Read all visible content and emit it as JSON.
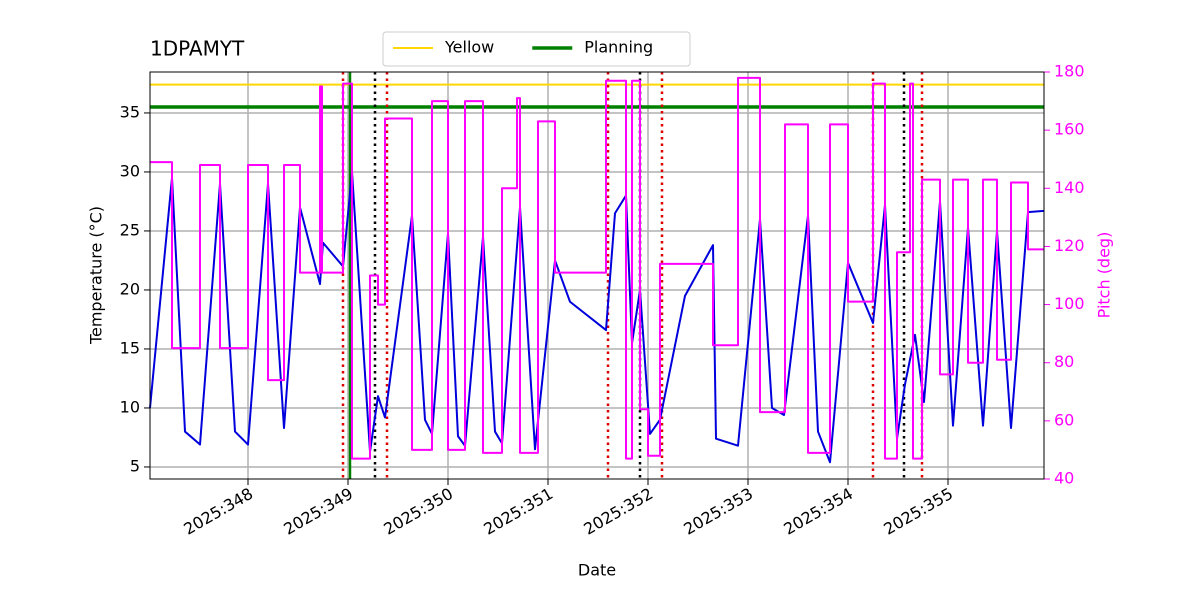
{
  "chart_data": {
    "type": "line",
    "title": "1DPAMYT",
    "x_label": "Date",
    "y_label": "Temperature (°C)",
    "y2_label": "Pitch (deg)",
    "y2_color": "#ff00ff",
    "grid": true,
    "legend": "top-center",
    "xlim": [
      347.02,
      355.96
    ],
    "xticks": [
      {
        "value": 348,
        "label": "2025:348"
      },
      {
        "value": 349,
        "label": "2025:349"
      },
      {
        "value": 350,
        "label": "2025:350"
      },
      {
        "value": 351,
        "label": "2025:351"
      },
      {
        "value": 352,
        "label": "2025:352"
      },
      {
        "value": 353,
        "label": "2025:353"
      },
      {
        "value": 354,
        "label": "2025:354"
      },
      {
        "value": 355,
        "label": "2025:355"
      }
    ],
    "ylim": [
      3.98,
      38.47
    ],
    "yticks": [
      5,
      10,
      15,
      20,
      25,
      30,
      35
    ],
    "y2lim": [
      40,
      180
    ],
    "y2ticks": [
      40,
      60,
      80,
      100,
      120,
      140,
      160,
      180
    ],
    "hlines": [
      {
        "name": "Yellow",
        "color": "#ffd700",
        "value": 37.4
      },
      {
        "name": "Planning",
        "color": "#008000",
        "value": 35.5
      }
    ],
    "vlines": [
      {
        "color": "#dd0000",
        "style": "dotted",
        "x": [
          348.95,
          349.39,
          351.6,
          352.14,
          354.25,
          354.74
        ]
      },
      {
        "color": "#000000",
        "style": "dotted",
        "x": [
          349.27,
          351.92,
          354.56
        ]
      },
      {
        "color": "#008000",
        "style": "solid",
        "x": [
          349.02
        ]
      }
    ],
    "series": [
      {
        "color": "#0000dd",
        "x": [
          347.02,
          347.24,
          347.37,
          347.52,
          347.72,
          347.87,
          348.0,
          348.2,
          348.36,
          348.52,
          348.72,
          348.75,
          348.95,
          349.04,
          349.22,
          349.3,
          349.37,
          349.64,
          349.77,
          349.84,
          350.0,
          350.1,
          350.17,
          350.35,
          350.47,
          350.54,
          350.72,
          350.87,
          351.07,
          351.22,
          351.58,
          351.67,
          351.78,
          351.84,
          351.92,
          352.02,
          352.12,
          352.37,
          352.65,
          352.68,
          352.9,
          353.12,
          353.24,
          353.36,
          353.6,
          353.7,
          353.82,
          354.0,
          354.25,
          354.37,
          354.49,
          354.57,
          354.67,
          354.76,
          354.92,
          355.05,
          355.2,
          355.35,
          355.49,
          355.63,
          355.8,
          355.96
        ],
        "values": [
          10,
          29.5,
          8,
          6.9,
          29,
          8,
          6.9,
          29,
          8.3,
          27,
          20.5,
          24,
          22,
          30,
          6.3,
          11,
          9.2,
          26.3,
          9,
          7.8,
          24.8,
          7.6,
          6.8,
          24.5,
          8,
          7,
          27,
          6.5,
          22.5,
          19,
          16.6,
          26.5,
          28,
          15.5,
          20,
          7.8,
          9,
          19.5,
          23.8,
          7.4,
          6.8,
          26,
          10,
          9.4,
          26.3,
          8,
          5.4,
          22.3,
          17.2,
          27.2,
          7.4,
          12,
          16.2,
          10.5,
          27.5,
          8.5,
          25.3,
          8.5,
          25,
          8.3,
          26.6,
          26.7
        ]
      },
      {
        "color": "#ff00ff",
        "axis": "y2",
        "drawstyle": "steps-post",
        "x": [
          347.02,
          347.24,
          347.52,
          347.72,
          348.0,
          348.2,
          348.36,
          348.52,
          348.72,
          348.74,
          348.95,
          349.04,
          349.22,
          349.3,
          349.37,
          349.64,
          349.84,
          350.0,
          350.17,
          350.35,
          350.54,
          350.69,
          350.72,
          350.9,
          351.07,
          351.58,
          351.78,
          351.84,
          351.92,
          352.0,
          352.12,
          352.65,
          352.9,
          353.12,
          353.37,
          353.6,
          353.82,
          354.0,
          354.25,
          354.37,
          354.49,
          354.62,
          354.65,
          354.74,
          354.92,
          355.05,
          355.2,
          355.35,
          355.49,
          355.63,
          355.8,
          355.96
        ],
        "values": [
          149,
          85,
          148,
          85,
          148,
          74,
          148,
          111,
          175,
          111,
          176,
          47,
          110,
          100,
          164,
          50,
          170,
          50,
          170,
          49,
          140,
          171,
          49,
          163,
          111,
          177,
          47,
          177,
          64,
          48,
          114,
          86,
          178,
          63,
          162,
          49,
          162,
          101,
          176,
          47,
          118,
          176,
          47,
          143,
          76,
          143,
          80,
          143,
          81,
          142,
          119,
          119
        ]
      }
    ]
  }
}
